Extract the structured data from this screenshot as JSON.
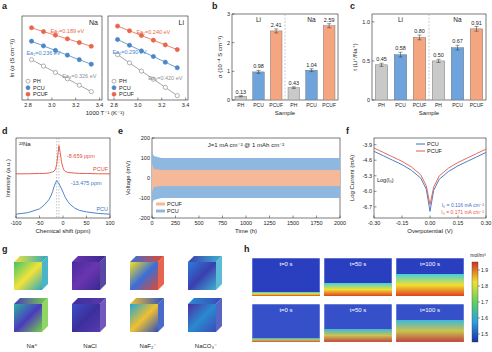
{
  "chart_data": [
    {
      "panel": "a",
      "type": "scatter",
      "title": "Na",
      "x_label": "1000 T⁻¹ (K⁻¹)",
      "y_label": "ln (σ (S cm⁻¹))",
      "x": [
        2.83,
        2.93,
        3.03,
        3.13,
        3.23,
        3.33
      ],
      "xlim": [
        2.75,
        3.42
      ],
      "xticks": [
        2.8,
        {
          "value": 3,
          "label": "3.0"
        },
        3.2,
        3.4
      ],
      "ylim": [
        -10,
        -5
      ],
      "tick_labels": "x",
      "legend": "lower left",
      "line_style": "solid",
      "series": [
        {
          "name": "PH",
          "color": "#8f8f8f",
          "marker": "open-circle",
          "values": [
            -7.6,
            -7.98,
            -8.36,
            -8.74,
            -9.12,
            -9.5
          ]
        },
        {
          "name": "PCU",
          "color": "#4a86c8",
          "marker": "circle",
          "values": [
            -6.5,
            -6.78,
            -7.05,
            -7.33,
            -7.6,
            -7.87
          ]
        },
        {
          "name": "PCUF",
          "color": "#e8664a",
          "marker": "circle",
          "values": [
            -5.7,
            -5.93,
            -6.14,
            -6.36,
            -6.58,
            -6.8
          ]
        }
      ],
      "annotations": [
        {
          "text": "Ea₁=0.189 eV",
          "series": "PCUF"
        },
        {
          "text": "Ea₂=0.236 eV",
          "series": "PCU"
        },
        {
          "text": "Ea₃=0.326 eV",
          "series": "PH"
        }
      ]
    },
    {
      "type": "scatter",
      "title": "Li",
      "x": [
        2.83,
        2.93,
        3.03,
        3.13,
        3.23,
        3.33
      ],
      "xlim": [
        2.75,
        3.42
      ],
      "xticks": [
        2.8,
        {
          "value": 3,
          "label": "3.0"
        },
        3.2,
        3.4
      ],
      "ylim": [
        -10,
        -5
      ],
      "tick_labels": "x",
      "legend": "lower left",
      "line_style": "solid",
      "series": [
        {
          "name": "PH",
          "color": "#8f8f8f",
          "marker": "open-circle",
          "values": [
            -7.3,
            -7.79,
            -8.28,
            -8.76,
            -9.25,
            -9.74
          ]
        },
        {
          "name": "PCU",
          "color": "#4a86c8",
          "marker": "circle",
          "values": [
            -6.4,
            -6.74,
            -7.08,
            -7.41,
            -7.75,
            -8.08
          ]
        },
        {
          "name": "PCUF",
          "color": "#e8664a",
          "marker": "circle",
          "values": [
            -5.6,
            -5.88,
            -6.16,
            -6.44,
            -6.72,
            -7.0
          ]
        }
      ],
      "annotations": [
        {
          "text": "Ea₁=0.240 eV",
          "series": "PCUF"
        },
        {
          "text": "Ea₂=0.290 eV",
          "series": "PCU"
        },
        {
          "text": "Ea₃=0.420 eV",
          "series": "PH"
        }
      ]
    },
    {
      "panel": "b",
      "type": "bar",
      "x_label": "Sample",
      "y_label": "σ (10⁻⁴ S cm⁻¹)",
      "categories": [
        "PH",
        "PCU",
        "PCUF",
        "PH",
        "PCU",
        "PCUF"
      ],
      "groups": [
        "Li",
        "Na"
      ],
      "values": [
        0.13,
        0.98,
        2.41,
        0.43,
        1.04,
        2.59
      ],
      "errors": [
        0.02,
        0.05,
        0.07,
        0.03,
        0.05,
        0.07
      ],
      "colors": [
        "#c9c9c9",
        "#6fa3dc",
        "#f5a57f",
        "#c9c9c9",
        "#6fa3dc",
        "#f5a57f"
      ],
      "ylim": [
        0,
        3
      ],
      "yticks": [
        0,
        1,
        2,
        3
      ],
      "data_labels": true
    },
    {
      "panel": "c",
      "type": "bar",
      "x_label": "Sample",
      "y_label": "t (Li⁺/Na⁺)",
      "categories": [
        "PH",
        "PCU",
        "PCUF",
        "PH",
        "PCU",
        "PCUF"
      ],
      "groups": [
        "Li",
        "Na"
      ],
      "values": [
        0.45,
        0.58,
        0.8,
        0.5,
        0.67,
        0.91
      ],
      "value_labels": [
        "0.45",
        "0.58",
        "0.80",
        "0.50",
        "0.67",
        "0.91"
      ],
      "errors": [
        0.02,
        0.03,
        0.03,
        0.02,
        0.03,
        0.03
      ],
      "colors": [
        "#c9c9c9",
        "#6fa3dc",
        "#f5a57f",
        "#c9c9c9",
        "#6fa3dc",
        "#f5a57f"
      ],
      "ylim": [
        0,
        1.1
      ],
      "yticks": [
        0,
        0.5,
        {
          "value": 1,
          "label": "1.0"
        }
      ],
      "data_labels": true
    },
    {
      "panel": "d",
      "type": "line",
      "title": "²³Na",
      "x_label": "Chemical shift (ppm)",
      "y_label": "Intensity (a.u.)",
      "x": [
        -100,
        -75,
        -50,
        -40,
        -30,
        -25,
        -22,
        -19,
        -16,
        -13.475,
        -11,
        -8.659,
        -6,
        -3,
        0,
        2,
        5,
        10,
        15,
        25,
        35,
        50,
        75,
        100
      ],
      "xlim": [
        -100,
        100
      ],
      "xticks": [
        -100,
        -50,
        0,
        50,
        100
      ],
      "ylim": [
        0,
        10.5
      ],
      "tick_labels": "x",
      "legend": "inline",
      "series": [
        {
          "name": "PCUF",
          "color": "#e0503a",
          "values": [
            5.8,
            5.8,
            5.85,
            5.85,
            5.9,
            6.0,
            6.05,
            6.15,
            6.4,
            7.0,
            8.3,
            9.5,
            8.6,
            7.3,
            6.6,
            6.3,
            6.1,
            6.0,
            5.95,
            5.9,
            5.85,
            5.85,
            5.8,
            5.8
          ]
        },
        {
          "name": "PCU",
          "color": "#3a78c0",
          "values": [
            0.5,
            0.7,
            1.2,
            1.7,
            2.4,
            3.0,
            3.5,
            4.1,
            4.6,
            4.9,
            4.7,
            4.5,
            4.2,
            3.8,
            3.4,
            3.1,
            2.7,
            2.2,
            1.8,
            1.3,
            1.0,
            0.8,
            0.6,
            0.5
          ]
        }
      ],
      "annotations": [
        {
          "text": "-8.659 ppm",
          "x": -8.659,
          "series": "PCUF"
        },
        {
          "text": "-13.475 ppm",
          "x": -13.475,
          "series": "PCU"
        }
      ]
    },
    {
      "panel": "e",
      "type": "area",
      "x_label": "Time (h)",
      "y_label": "Voltage (mV)",
      "x": [
        0,
        20,
        100,
        500,
        1000,
        1500,
        2000
      ],
      "xlim": [
        0,
        2000
      ],
      "xticks": [
        0,
        250,
        500,
        750,
        1000,
        1250,
        1500,
        1750,
        2000
      ],
      "ylim": [
        -200,
        200
      ],
      "yticks": [
        -200,
        -100,
        0,
        100,
        200
      ],
      "legend": "lower left",
      "series": [
        {
          "name": "PCUF",
          "color": "#f5b99a",
          "values": [
            70,
            45,
            40,
            40,
            40,
            40,
            40
          ],
          "lower": [
            -70,
            -45,
            -40,
            -40,
            -40,
            -40,
            -40
          ]
        },
        {
          "name": "PCU",
          "color": "#8fb8e0",
          "values": [
            130,
            110,
            100,
            100,
            100,
            100,
            100
          ],
          "lower": [
            -130,
            -110,
            -100,
            -100,
            -100,
            -100,
            -100
          ]
        }
      ],
      "annotations": [
        {
          "text": "J=1 mA cm⁻² @ 1 mAh cm⁻²"
        }
      ]
    },
    {
      "panel": "f",
      "type": "line",
      "x_label": "Overpotential (V)",
      "y_label": "Log Current (mA)",
      "x": [
        -0.3,
        -0.25,
        -0.2,
        -0.15,
        -0.1,
        -0.05,
        -0.02,
        0,
        0.02,
        0.05,
        0.1,
        0.15,
        0.2,
        0.25,
        0.3
      ],
      "xlim": [
        -0.3,
        0.3
      ],
      "xticks": [
        {
          "value": -0.3,
          "label": "-0.30"
        },
        -0.15,
        {
          "value": 0,
          "label": "0.00"
        },
        0.15,
        {
          "value": 0.3,
          "label": "0.30"
        }
      ],
      "ylim": [
        -7.2,
        -3.6
      ],
      "yticks": [
        -3.9,
        -4.6,
        -5.3,
        {
          "value": -6,
          "label": "-6.0"
        },
        -6.7
      ],
      "legend": "upper center",
      "series": [
        {
          "name": "PCU",
          "color": "#3a6fc0",
          "values": [
            -4.2,
            -4.4,
            -4.6,
            -4.8,
            -5.05,
            -5.4,
            -5.9,
            -6.9,
            -5.95,
            -5.45,
            -5.1,
            -4.85,
            -4.65,
            -4.45,
            -4.25
          ]
        },
        {
          "name": "PCUF",
          "color": "#e05a4a",
          "values": [
            -4.05,
            -4.25,
            -4.45,
            -4.65,
            -4.9,
            -5.25,
            -5.75,
            -6.6,
            -5.8,
            -5.3,
            -4.95,
            -4.7,
            -4.5,
            -4.3,
            -4.1
          ]
        }
      ],
      "annotations": [
        {
          "text": "I₀ = 0.116 mA cm⁻²",
          "series": "PCU"
        },
        {
          "text": "I₀ = 0.171 mA cm⁻²",
          "series": "PCUF"
        },
        {
          "text": "Log(I₀)"
        }
      ]
    }
  ],
  "images": [
    {
      "panel": "g",
      "labels": [
        "Na⁺",
        "NaCl",
        "NaF₂⁻",
        "NaCO₃⁻"
      ]
    },
    {
      "panel": "h",
      "rows": [
        [
          "t=0 s",
          "t=50 s",
          "t=100 s"
        ],
        [
          "t=0 s",
          "t=50 s",
          "t=100 s"
        ]
      ],
      "colorbar": {
        "label": "mol/m³",
        "range": [
          1.45,
          1.95
        ],
        "ticks": [
          1.5,
          1.6,
          1.7,
          1.8,
          1.9
        ]
      }
    }
  ]
}
